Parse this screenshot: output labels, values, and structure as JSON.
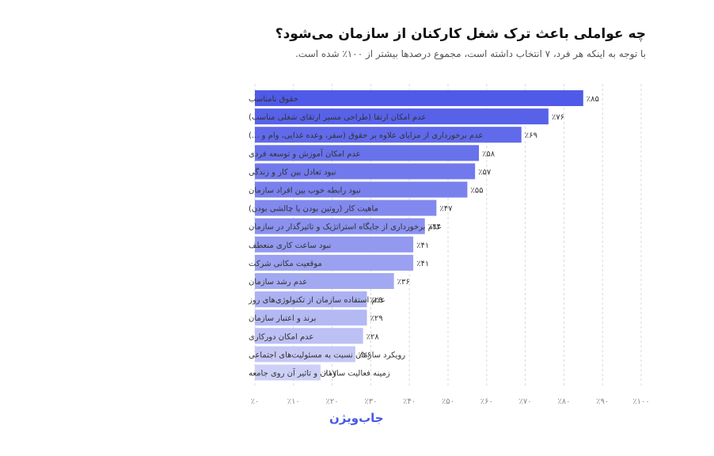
{
  "title": "چه عواملی باعث ترک شغل کارکنان از سازمان می‌شود؟",
  "subtitle": "با توجه به اینکه هر فرد، ۷ انتخاب داشته است، مجموع درصدها بیشتر از ۱۰۰٪ شده است.",
  "logo_text": "جاب‌ویژن",
  "chart_data": {
    "type": "bar",
    "orientation": "horizontal",
    "categories": [
      "حقوق نامناسب",
      "عدم امکان ارتقا (طراحی مسیر ارتقای شغلی مناسب)",
      "عدم برخورداری از مزایای علاوه بر حقوق (سفر، وعده غذایی، وام و ...)",
      "عدم امکان آموزش و توسعه فردی",
      "نبود تعادل بین کار و زندگی",
      "نبود رابطه خوب بین افراد سازمان",
      "ماهیت کار (روتین بودن یا چالشی بودن)",
      "عدم برخورداری از جایگاه استراتژیک و تاثیرگذار در سازمان",
      "نبود ساعت کاری منعطف",
      "موقعیت مکانی شرکت",
      "عدم رشد سازمان",
      "عدم استفاده سازمان از تکنولوژی‌های روز",
      "برند و اعتبار سازمان",
      "عدم امکان دورکاری",
      "رویکرد سازمان نسبت به مسئولیت‌های اجتماعی",
      "زمینه فعالیت سازمان و تاثیر آن روی جامعه"
    ],
    "values": [
      85,
      76,
      69,
      58,
      57,
      55,
      47,
      44,
      41,
      41,
      36,
      29,
      29,
      28,
      26,
      17
    ],
    "value_labels": [
      "٪۸۵",
      "٪۷۶",
      "٪۶۹",
      "٪۵۸",
      "٪۵۷",
      "٪۵۵",
      "٪۴۷",
      "٪۴۴",
      "٪۴۱",
      "٪۴۱",
      "٪۳۶",
      "٪۲۹",
      "٪۲۹",
      "٪۲۸",
      "٪۲۶",
      "٪۱۷"
    ],
    "xlim": [
      0,
      100
    ],
    "x_ticks": [
      0,
      10,
      20,
      30,
      40,
      50,
      60,
      70,
      80,
      90,
      100
    ],
    "x_tick_labels": [
      "٪۰",
      "٪۱۰",
      "٪۲۰",
      "٪۳۰",
      "٪۴۰",
      "٪۵۰",
      "٪۶۰",
      "٪۷۰",
      "٪۸۰",
      "٪۹۰",
      "٪۱۰۰"
    ],
    "grid": "vertical-dashed",
    "bar_color_start": "#4f5ae8",
    "bar_color_end": "#cdd0f6"
  }
}
